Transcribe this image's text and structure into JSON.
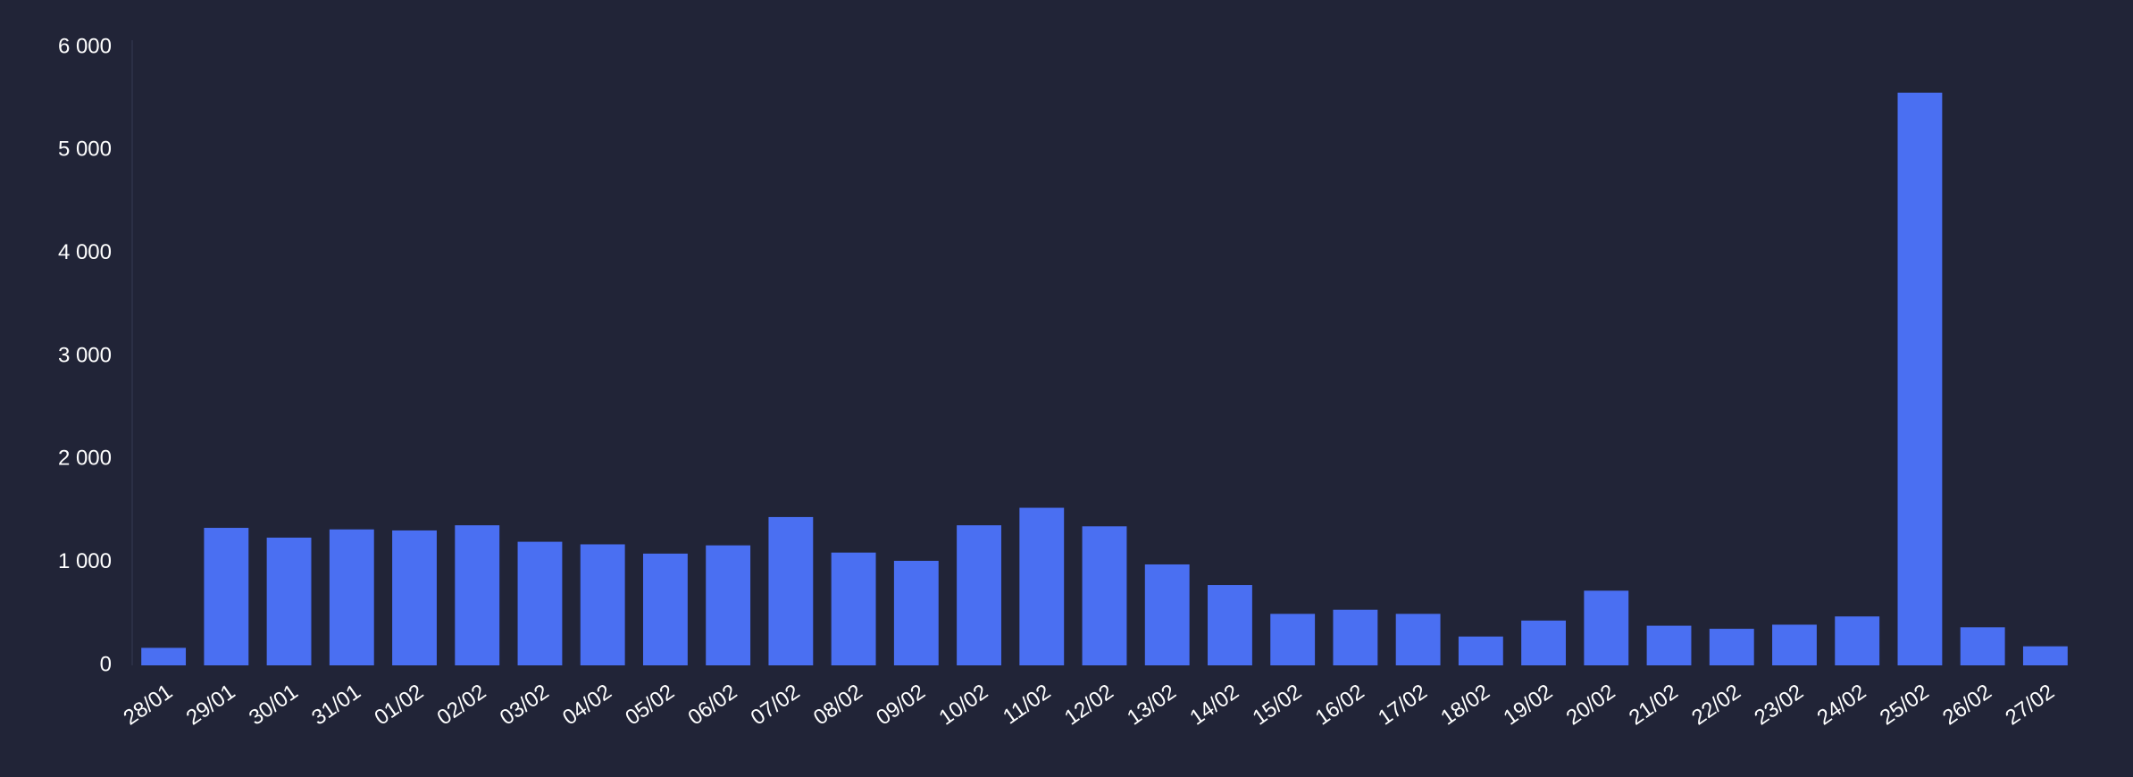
{
  "chart_data": {
    "type": "bar",
    "categories": [
      "28/01",
      "29/01",
      "30/01",
      "31/01",
      "01/02",
      "02/02",
      "03/02",
      "04/02",
      "05/02",
      "06/02",
      "07/02",
      "08/02",
      "09/02",
      "10/02",
      "11/02",
      "12/02",
      "13/02",
      "14/02",
      "15/02",
      "16/02",
      "17/02",
      "18/02",
      "19/02",
      "20/02",
      "21/02",
      "22/02",
      "23/02",
      "24/02",
      "25/02",
      "26/02",
      "27/02"
    ],
    "values": [
      170,
      1335,
      1240,
      1320,
      1310,
      1360,
      1200,
      1175,
      1085,
      1165,
      1440,
      1095,
      1015,
      1360,
      1530,
      1350,
      980,
      780,
      500,
      540,
      500,
      280,
      435,
      725,
      385,
      355,
      395,
      475,
      5560,
      370,
      185
    ],
    "color": "#4a6ff2",
    "ylim": [
      0,
      6000
    ],
    "yticks": [
      0,
      {
        "value": 1000,
        "label": "1 000"
      },
      {
        "value": 2000,
        "label": "2 000"
      },
      {
        "value": 3000,
        "label": "3 000"
      },
      {
        "value": 4000,
        "label": "4 000"
      },
      {
        "value": 5000,
        "label": "5 000"
      },
      {
        "value": 6000,
        "label": "6 000"
      }
    ],
    "grid": false
  }
}
